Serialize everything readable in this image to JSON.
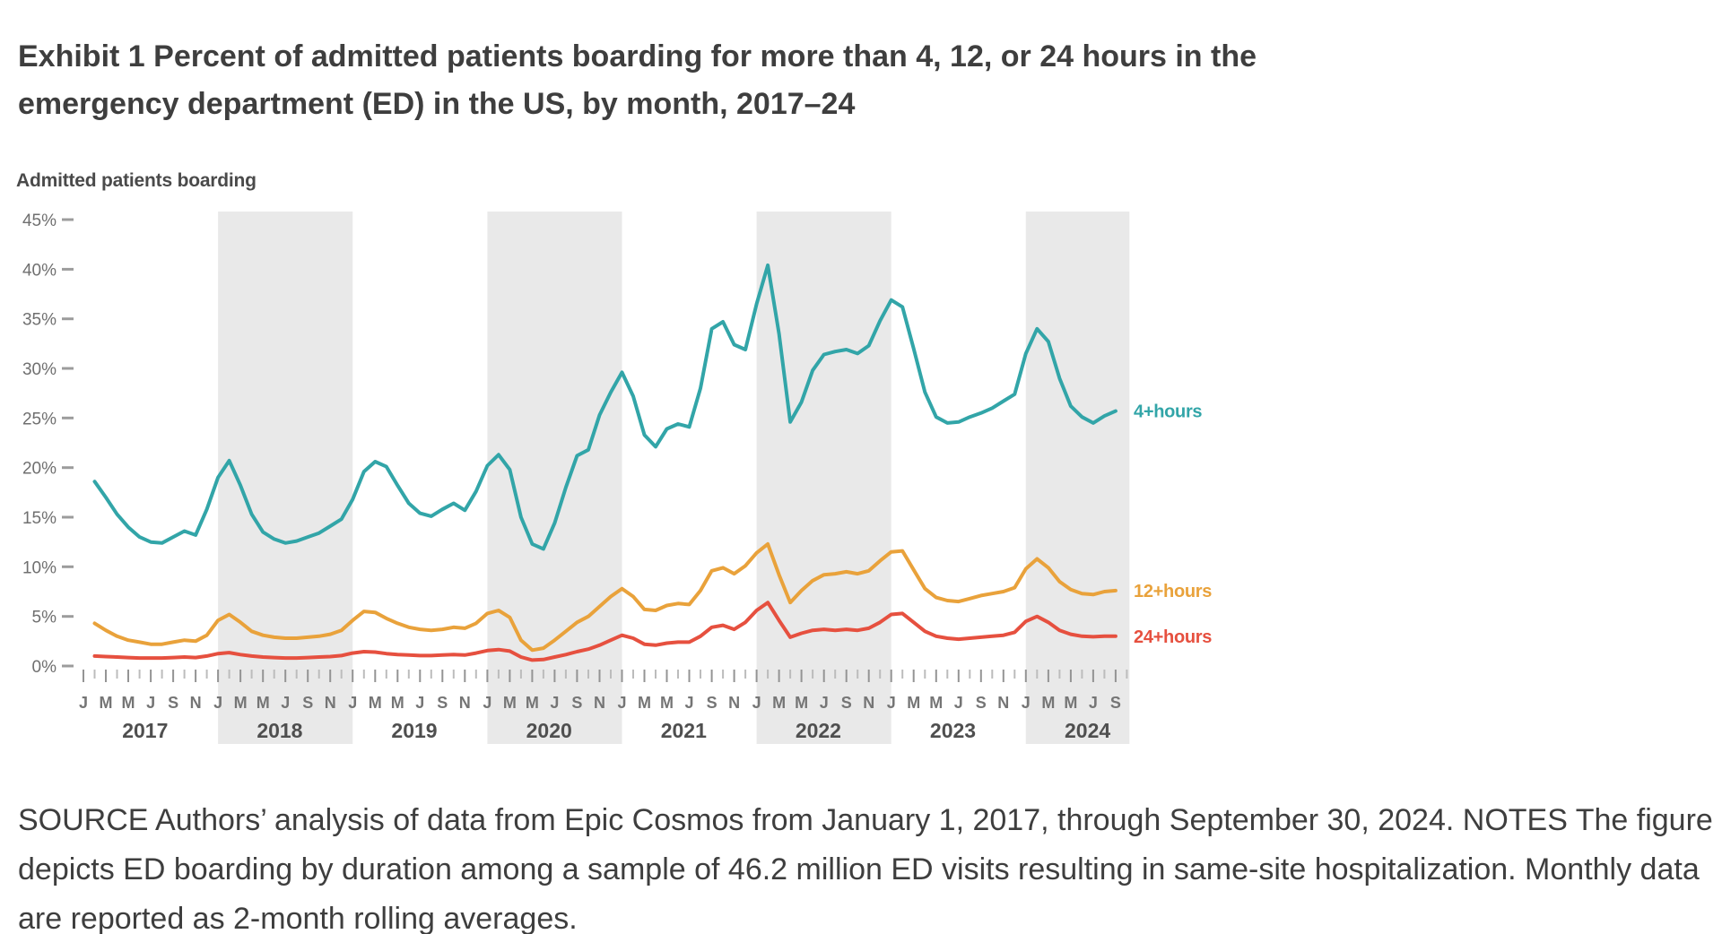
{
  "title": {
    "label": "Exhibit 1",
    "text": "Percent of admitted patients boarding for more than 4, 12, or 24 hours in the emergency department (ED) in the US, by month, 2017–24"
  },
  "footer": {
    "text": "SOURCE Authors’ analysis of data from Epic Cosmos from January 1, 2017, through September 30, 2024. NOTES The figure depicts ED boarding by duration among a sample of 46.2 million ED visits resulting in same-site hospitalization. Monthly data are reported as 2-month rolling averages."
  },
  "colors": {
    "band": "#e9e9e9",
    "axis_text": "#6f6f6f",
    "month_text": "#757575",
    "year_text": "#4f4f4f",
    "tick_major": "#949494",
    "tick_minor": "#bcbcbc"
  },
  "chart_data": {
    "type": "line",
    "title": "Admitted patients boarding",
    "ylabel": "Percent of admitted patients boarding",
    "ylim": [
      0,
      45
    ],
    "y_tick_step": 5,
    "y_tick_labels": [
      "0%",
      "5%",
      "10%",
      "15%",
      "20%",
      "25%",
      "30%",
      "35%",
      "40%",
      "45%"
    ],
    "x_start": "2017-02",
    "x_end": "2024-09",
    "frequency": "monthly",
    "years": [
      2017,
      2018,
      2019,
      2020,
      2021,
      2022,
      2023,
      2024
    ],
    "month_tick_letters": [
      "J",
      "M",
      "M",
      "J",
      "S",
      "N"
    ],
    "shaded_year_bands": [
      2018,
      2020,
      2022,
      2024
    ],
    "grid": "none",
    "legend_position": "line-end-labels-right",
    "series": [
      {
        "name": "4+hours",
        "color": "#32a5a8",
        "values": [
          18.6,
          17.0,
          15.3,
          14.0,
          13.0,
          12.5,
          12.4,
          13.0,
          13.6,
          13.2,
          15.8,
          19.0,
          20.7,
          18.2,
          15.3,
          13.5,
          12.8,
          12.4,
          12.6,
          13.0,
          13.4,
          14.1,
          14.8,
          16.8,
          19.6,
          20.6,
          20.1,
          18.2,
          16.4,
          15.4,
          15.1,
          15.8,
          16.4,
          15.7,
          17.6,
          20.2,
          21.3,
          19.8,
          15.0,
          12.3,
          11.8,
          14.4,
          18.0,
          21.2,
          21.8,
          25.3,
          27.6,
          29.6,
          27.2,
          23.3,
          22.1,
          23.9,
          24.4,
          24.1,
          28.0,
          34.0,
          34.7,
          32.4,
          31.9,
          36.5,
          40.4,
          33.5,
          24.6,
          26.6,
          29.8,
          31.4,
          31.7,
          31.9,
          31.5,
          32.3,
          34.8,
          36.9,
          36.2,
          32.0,
          27.6,
          25.1,
          24.5,
          24.6,
          25.1,
          25.5,
          26.0,
          26.7,
          27.4,
          31.5,
          34.0,
          32.7,
          29.0,
          26.2,
          25.1,
          24.5,
          25.2,
          25.7
        ]
      },
      {
        "name": "12+hours",
        "color": "#e9a23b",
        "values": [
          4.3,
          3.6,
          3.0,
          2.6,
          2.4,
          2.2,
          2.2,
          2.4,
          2.6,
          2.5,
          3.1,
          4.6,
          5.2,
          4.4,
          3.5,
          3.1,
          2.9,
          2.8,
          2.8,
          2.9,
          3.0,
          3.2,
          3.6,
          4.6,
          5.5,
          5.4,
          4.8,
          4.3,
          3.9,
          3.7,
          3.6,
          3.7,
          3.9,
          3.8,
          4.3,
          5.3,
          5.6,
          4.9,
          2.6,
          1.6,
          1.8,
          2.6,
          3.5,
          4.4,
          5.0,
          6.0,
          7.0,
          7.8,
          7.0,
          5.7,
          5.6,
          6.1,
          6.3,
          6.2,
          7.6,
          9.6,
          9.9,
          9.3,
          10.1,
          11.4,
          12.3,
          9.2,
          6.4,
          7.6,
          8.6,
          9.2,
          9.3,
          9.5,
          9.3,
          9.6,
          10.6,
          11.5,
          11.6,
          9.7,
          7.8,
          6.9,
          6.6,
          6.5,
          6.8,
          7.1,
          7.3,
          7.5,
          7.9,
          9.8,
          10.8,
          9.9,
          8.5,
          7.7,
          7.3,
          7.2,
          7.5,
          7.6
        ]
      },
      {
        "name": "24+hours",
        "color": "#e6503f",
        "values": [
          1.0,
          0.95,
          0.9,
          0.85,
          0.8,
          0.8,
          0.8,
          0.85,
          0.9,
          0.85,
          1.0,
          1.25,
          1.35,
          1.15,
          1.0,
          0.9,
          0.85,
          0.8,
          0.8,
          0.85,
          0.9,
          0.95,
          1.05,
          1.3,
          1.45,
          1.4,
          1.25,
          1.15,
          1.1,
          1.05,
          1.05,
          1.1,
          1.15,
          1.1,
          1.3,
          1.55,
          1.65,
          1.5,
          0.9,
          0.6,
          0.65,
          0.9,
          1.15,
          1.45,
          1.7,
          2.1,
          2.6,
          3.1,
          2.8,
          2.2,
          2.1,
          2.3,
          2.4,
          2.4,
          3.0,
          3.9,
          4.1,
          3.7,
          4.4,
          5.6,
          6.4,
          4.6,
          2.9,
          3.3,
          3.6,
          3.7,
          3.6,
          3.7,
          3.6,
          3.8,
          4.4,
          5.2,
          5.3,
          4.4,
          3.5,
          3.0,
          2.8,
          2.7,
          2.8,
          2.9,
          3.0,
          3.1,
          3.4,
          4.5,
          5.0,
          4.4,
          3.6,
          3.2,
          3.0,
          2.95,
          3.0,
          3.0
        ]
      }
    ]
  }
}
